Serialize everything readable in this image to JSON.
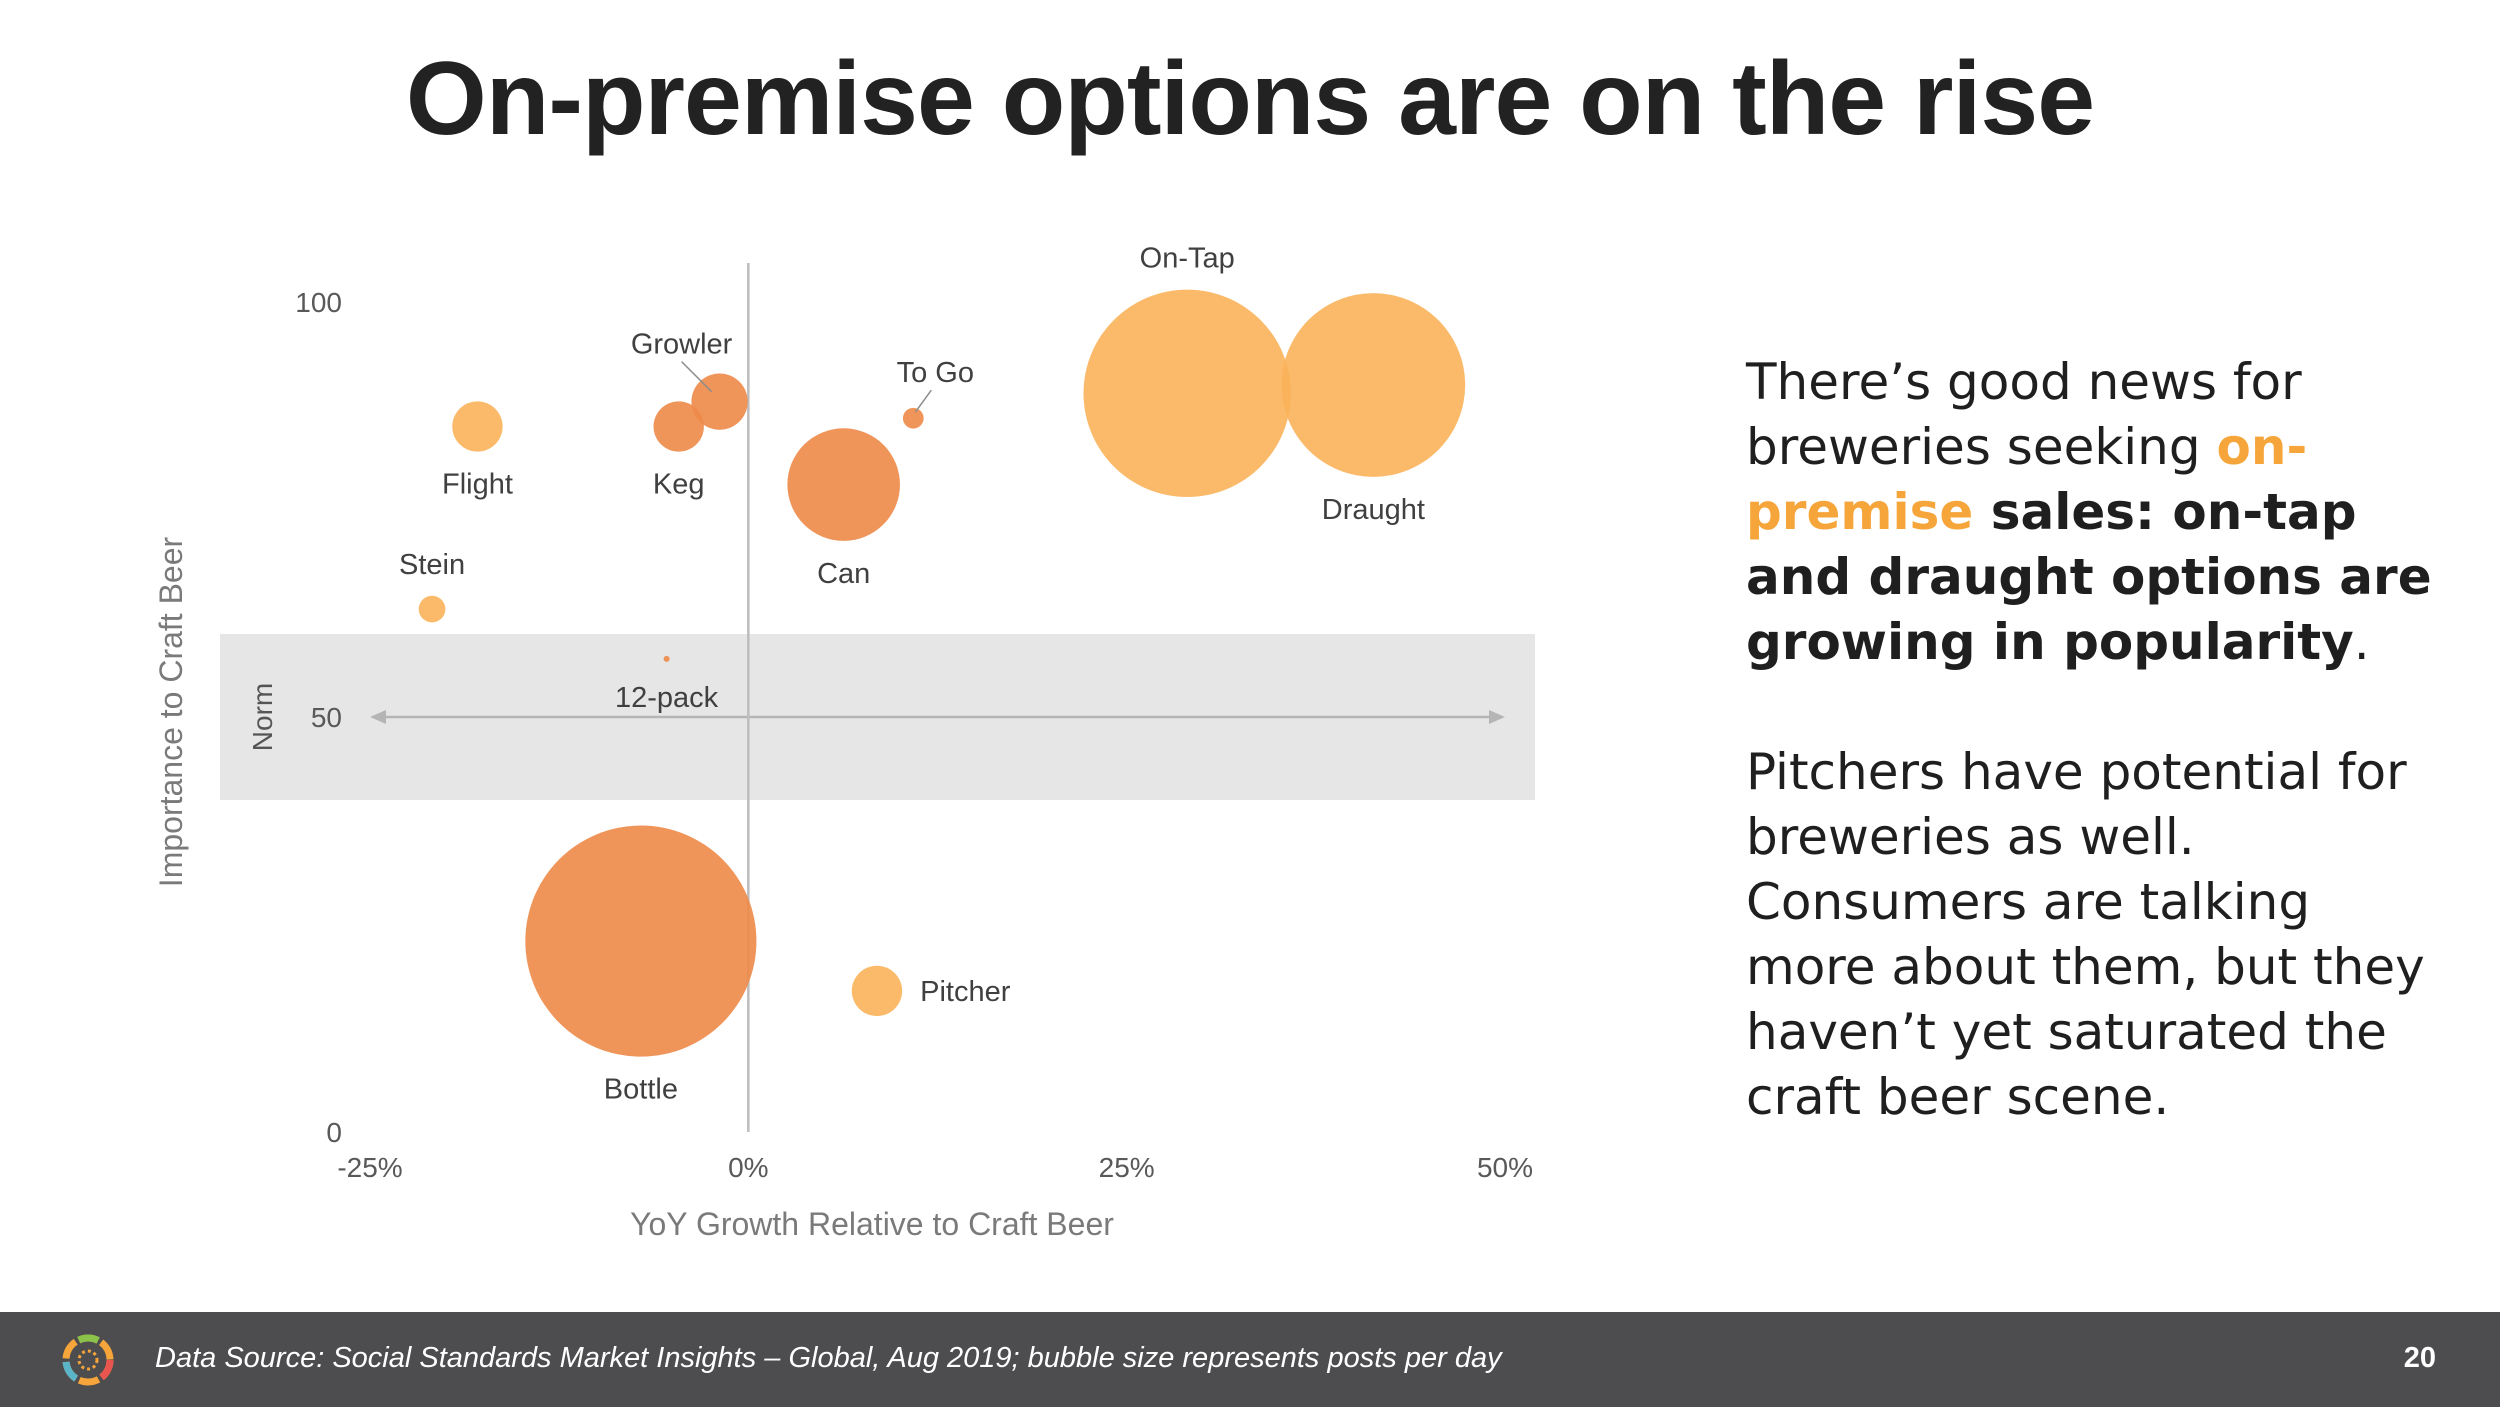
{
  "title": "On-premise options are on the rise",
  "chart_data": {
    "type": "bubble",
    "xlabel": "YoY Growth Relative to Craft Beer",
    "ylabel": "Importance to Craft Beer",
    "xlim": [
      -0.25,
      0.5
    ],
    "ylim": [
      0,
      100
    ],
    "x_ticks": [
      -0.25,
      0,
      0.25,
      0.5
    ],
    "x_tick_labels": [
      "-25%",
      "0%",
      "25%",
      "50%"
    ],
    "y_ticks": [
      0,
      50,
      100
    ],
    "y_tick_labels": [
      "0",
      "50",
      "100"
    ],
    "norm_band": {
      "label": "Norm",
      "y_range": [
        40,
        60
      ]
    },
    "size_note": "bubble size represents posts per day",
    "colors": {
      "light": "#fbb35a",
      "dark": "#ee8a48",
      "band": "#e6e6e6"
    },
    "points": [
      {
        "label": "On-Tap",
        "x": 0.29,
        "y": 89,
        "size": 140,
        "color": "light"
      },
      {
        "label": "Draught",
        "x": 0.413,
        "y": 90,
        "size": 124,
        "color": "light"
      },
      {
        "label": "Flight",
        "x": -0.179,
        "y": 85,
        "size": 34,
        "color": "light"
      },
      {
        "label": "Growler",
        "x": -0.019,
        "y": 88,
        "size": 38,
        "color": "dark"
      },
      {
        "label": "Keg",
        "x": -0.046,
        "y": 85,
        "size": 34,
        "color": "dark"
      },
      {
        "label": "To Go",
        "x": 0.109,
        "y": 86,
        "size": 14,
        "color": "dark"
      },
      {
        "label": "Can",
        "x": 0.063,
        "y": 78,
        "size": 76,
        "color": "dark"
      },
      {
        "label": "Stein",
        "x": -0.209,
        "y": 63,
        "size": 18,
        "color": "light"
      },
      {
        "label": "12-pack",
        "x": -0.054,
        "y": 57,
        "size": 4,
        "color": "dark"
      },
      {
        "label": "Bottle",
        "x": -0.071,
        "y": 23,
        "size": 156,
        "color": "dark"
      },
      {
        "label": "Pitcher",
        "x": 0.085,
        "y": 17,
        "size": 34,
        "color": "light"
      }
    ]
  },
  "side_text": {
    "p1_normal": "There’s good news for breweries seeking ",
    "p1_highlight": "on-premise",
    "p1_bold": " sales: on-tap and draught options are growing in popularity",
    "p1_end": ".",
    "p2": "Pitchers have potential for breweries as well. Consumers are talking more about them, but they haven’t yet saturated the craft beer scene."
  },
  "footer": {
    "source": "Data Source: Social Standards Market Insights – Global, Aug 2019; bubble size represents posts per day",
    "page_number": "20"
  }
}
